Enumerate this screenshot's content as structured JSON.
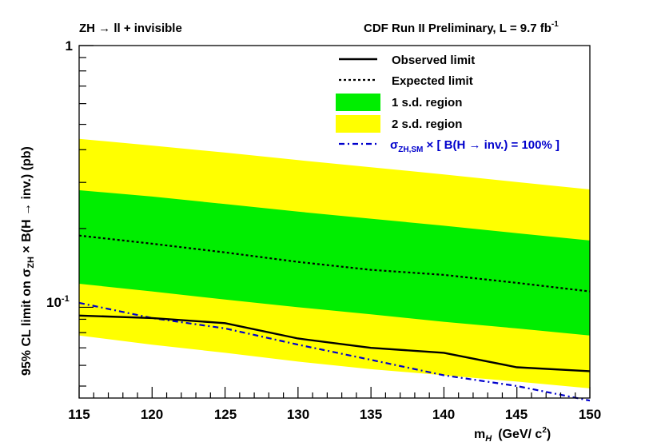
{
  "chart_data": {
    "type": "line",
    "title_left": "ZH → ll + invisible",
    "title_right_main": "CDF Run II Preliminary, L = 9.7 fb",
    "title_right_sup": "-1",
    "xlabel_main": "m",
    "xlabel_sub": "H",
    "xlabel_units": "(GeV/ c",
    "xlabel_units_sup": "2",
    "xlabel_units_close": ")",
    "ylabel_prefix": "95% CL limit on  σ",
    "ylabel_sub": "ZH",
    "ylabel_suffix": " × B(H → inv.) (pb)",
    "xlim": [
      115,
      150
    ],
    "ylim": [
      0.045,
      1.0
    ],
    "yscale": "log",
    "x_ticks": [
      "115",
      "120",
      "125",
      "130",
      "135",
      "140",
      "145",
      "150"
    ],
    "y_tick_1": "1",
    "y_tick_01_base": "10",
    "y_tick_01_exp": "-1",
    "x": [
      115,
      120,
      125,
      130,
      135,
      140,
      145,
      150
    ],
    "series": [
      {
        "name": "Observed limit",
        "values": [
          0.093,
          0.091,
          0.087,
          0.076,
          0.07,
          0.067,
          0.059,
          0.057
        ]
      },
      {
        "name": "Expected limit",
        "values": [
          0.188,
          0.175,
          0.162,
          0.149,
          0.139,
          0.133,
          0.124,
          0.115
        ]
      },
      {
        "name": "2 s.d. lower",
        "values": [
          0.078,
          0.072,
          0.067,
          0.062,
          0.058,
          0.055,
          0.052,
          0.049
        ]
      },
      {
        "name": "1 s.d. lower",
        "values": [
          0.123,
          0.115,
          0.107,
          0.1,
          0.094,
          0.088,
          0.083,
          0.078
        ]
      },
      {
        "name": "1 s.d. upper",
        "values": [
          0.28,
          0.265,
          0.248,
          0.232,
          0.218,
          0.205,
          0.192,
          0.18
        ]
      },
      {
        "name": "2 s.d. upper",
        "values": [
          0.44,
          0.415,
          0.39,
          0.365,
          0.343,
          0.322,
          0.301,
          0.282
        ]
      },
      {
        "name": "sigma_ZH,SM x B(H->inv.)=100%",
        "values": [
          0.104,
          0.091,
          0.083,
          0.072,
          0.063,
          0.055,
          0.05,
          0.044
        ]
      }
    ],
    "legend": {
      "observed": "Observed limit",
      "expected": "Expected limit",
      "one_sd": "1 s.d. region",
      "two_sd": "2 s.d. region",
      "theory_sigma": "σ",
      "theory_sub": "ZH,SM",
      "theory_rest": " × [ B(H → inv.) = 100% ]"
    },
    "colors": {
      "one_sd": "#00ee00",
      "two_sd": "#ffff00",
      "observed": "#000000",
      "expected": "#000000",
      "theory": "#0000cc"
    }
  }
}
